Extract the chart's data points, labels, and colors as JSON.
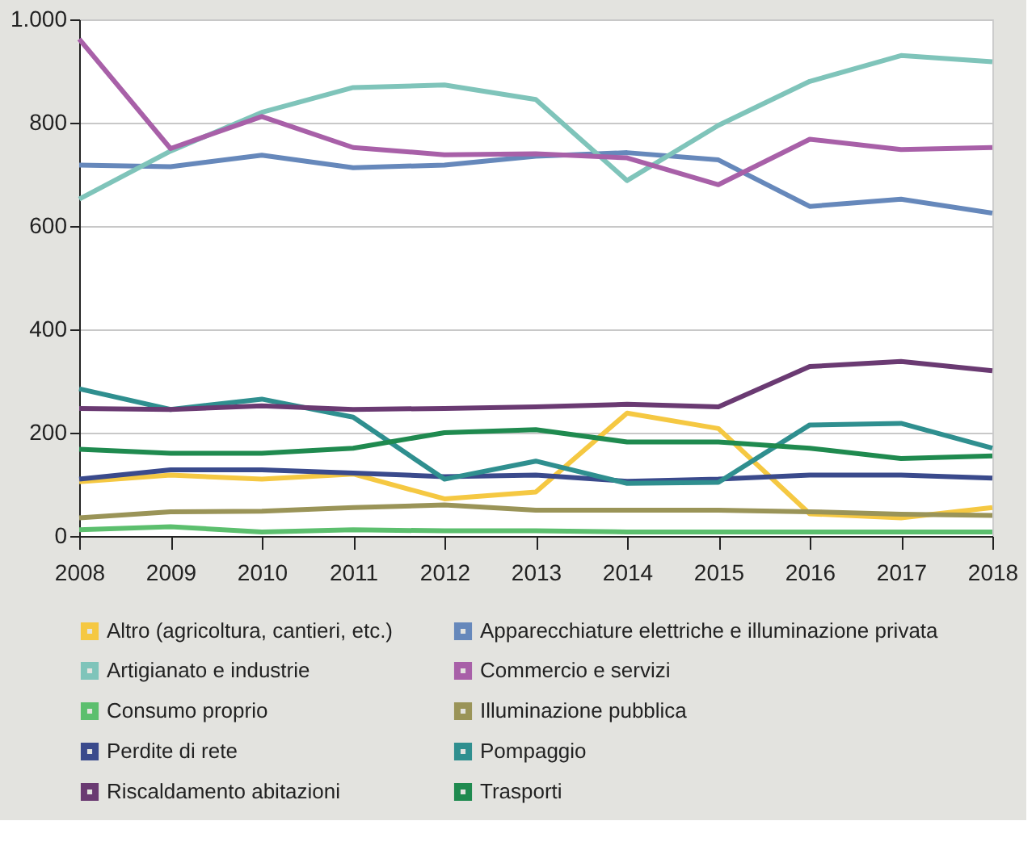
{
  "chart_data": {
    "type": "line",
    "x": [
      2008,
      2009,
      2010,
      2011,
      2012,
      2013,
      2014,
      2015,
      2016,
      2017,
      2018
    ],
    "xlim": [
      2008,
      2018
    ],
    "xticks": [
      2008,
      2009,
      2010,
      2011,
      2012,
      2013,
      2014,
      2015,
      2016,
      2017,
      2018
    ],
    "ylim": [
      0,
      1000
    ],
    "yticks": [
      0,
      200,
      400,
      600,
      800,
      {
        "value": 1000,
        "label": "1.000"
      }
    ],
    "grid": "y",
    "legend": "bottom",
    "marker": "none",
    "line_style": "solid",
    "series": [
      {
        "name": "Altro (agricoltura, cantieri, etc.)",
        "color": "#f5c842",
        "values": [
          105,
          118,
          110,
          120,
          72,
          85,
          238,
          208,
          43,
          35,
          55
        ]
      },
      {
        "name": "Apparecchiature elettriche e illuminazione privata",
        "color": "#6688bb",
        "values": [
          718,
          715,
          737,
          713,
          718,
          735,
          742,
          728,
          638,
          652,
          625
        ]
      },
      {
        "name": "Artigianato e industrie",
        "color": "#7fc4ba",
        "values": [
          652,
          745,
          820,
          868,
          873,
          845,
          688,
          795,
          880,
          930,
          918
        ]
      },
      {
        "name": "Commercio e servizi",
        "color": "#a860a8",
        "values": [
          962,
          750,
          812,
          752,
          738,
          740,
          732,
          680,
          768,
          748,
          752
        ]
      },
      {
        "name": "Consumo proprio",
        "color": "#5cbf6e",
        "values": [
          12,
          18,
          8,
          12,
          10,
          10,
          8,
          8,
          8,
          8,
          8
        ]
      },
      {
        "name": "Illuminazione pubblica",
        "color": "#9a9458",
        "values": [
          35,
          47,
          48,
          55,
          60,
          50,
          50,
          50,
          47,
          42,
          40
        ]
      },
      {
        "name": "Perdite di rete",
        "color": "#3a4a8c",
        "values": [
          110,
          128,
          128,
          122,
          115,
          118,
          106,
          110,
          118,
          118,
          112
        ]
      },
      {
        "name": "Pompaggio",
        "color": "#2f8f8f",
        "values": [
          285,
          245,
          265,
          230,
          110,
          145,
          102,
          104,
          215,
          218,
          170
        ]
      },
      {
        "name": "Riscaldamento abitazioni",
        "color": "#6a3a72",
        "values": [
          247,
          245,
          252,
          245,
          247,
          250,
          255,
          250,
          328,
          338,
          320
        ]
      },
      {
        "name": "Trasporti",
        "color": "#1f8a4f",
        "values": [
          168,
          160,
          160,
          170,
          200,
          206,
          182,
          182,
          170,
          150,
          155
        ]
      }
    ]
  }
}
